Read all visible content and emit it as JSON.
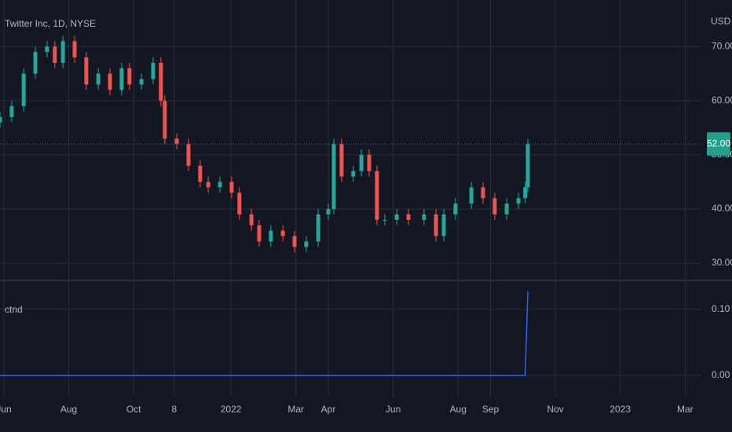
{
  "chart_data": [
    {
      "type": "candlestick",
      "title": "Twitter Inc, 1D, NYSE",
      "y_label": "USD",
      "up_color": "#26a69a",
      "down_color": "#ef5350",
      "grid": true,
      "x": [
        5.88,
        6.24,
        6.61,
        6.97,
        7.33,
        7.57,
        7.82,
        8.18,
        8.54,
        8.91,
        9.27,
        9.63,
        9.87,
        10.24,
        10.6,
        10.84,
        10.96,
        11.33,
        11.69,
        12.05,
        12.3,
        12.66,
        13.02,
        13.26,
        13.63,
        13.87,
        14.23,
        14.6,
        14.96,
        15.32,
        15.69,
        16.0,
        16.17,
        16.41,
        16.77,
        17.02,
        17.26,
        17.5,
        17.74,
        18.11,
        18.47,
        18.95,
        19.32,
        19.56,
        19.92,
        20.41,
        20.77,
        21.13,
        21.5,
        21.86,
        22.07,
        22.15
      ],
      "open": [
        56,
        57,
        59,
        65,
        69,
        70,
        67,
        71,
        68,
        63,
        65,
        62,
        66,
        63,
        64,
        67,
        60,
        53,
        52,
        48,
        45,
        44,
        45,
        43,
        39,
        37,
        34,
        36,
        35,
        33,
        34,
        39,
        40,
        52,
        46,
        47,
        50,
        47,
        38,
        38,
        39,
        38,
        39,
        35,
        39,
        41,
        44,
        42,
        39,
        41,
        42,
        44
      ],
      "high": [
        58,
        60,
        66,
        70,
        71,
        71,
        72,
        72,
        69,
        66,
        66,
        67,
        67,
        65,
        68,
        68,
        61,
        54,
        53,
        49,
        46,
        46,
        46,
        44,
        40,
        38,
        37,
        37,
        36,
        35,
        40,
        41,
        53,
        53,
        48,
        51,
        51,
        48,
        39,
        40,
        40,
        40,
        40,
        40,
        42,
        45,
        45,
        43,
        42,
        43,
        45,
        53
      ],
      "low": [
        55,
        56,
        58,
        64,
        68,
        66,
        66,
        67,
        62,
        62,
        61,
        61,
        62,
        62,
        63,
        59,
        52,
        51,
        47,
        44,
        43,
        43,
        42,
        38,
        36,
        33,
        33,
        34,
        32,
        32,
        33,
        38,
        39,
        45,
        45,
        46,
        46,
        37,
        37,
        37,
        37,
        37,
        34,
        34,
        38,
        40,
        41,
        38,
        38,
        40,
        41,
        43
      ],
      "close": [
        57,
        59,
        65,
        69,
        70,
        67,
        71,
        68,
        63,
        65,
        62,
        66,
        63,
        64,
        67,
        60,
        53,
        52,
        48,
        45,
        44,
        45,
        43,
        39,
        37,
        34,
        36,
        35,
        33,
        34,
        39,
        40,
        52,
        46,
        47,
        50,
        47,
        38,
        38,
        39,
        38,
        39,
        35,
        39,
        41,
        44,
        42,
        39,
        41,
        42,
        44,
        52
      ],
      "last_price": {
        "value": 52,
        "label": "52.00"
      },
      "last_price_color": "#22a08c",
      "price_line_color": "#2962ff",
      "xlim": [
        5.88,
        27.5
      ],
      "ylim": [
        27.1,
        78.6
      ],
      "yticks": [
        {
          "value": 30,
          "label": "30.00"
        },
        {
          "value": 40,
          "label": "40.00"
        },
        {
          "value": 50,
          "label": "50.00"
        },
        {
          "value": 60,
          "label": "60.00"
        },
        {
          "value": 70,
          "label": "70.00"
        }
      ]
    },
    {
      "type": "line",
      "title": "ctnd",
      "grid": true,
      "series": [
        {
          "name": "ctnd",
          "color": "#2962ff",
          "x": [
            5.88,
            22.07,
            22.15
          ],
          "values": [
            0,
            0,
            0.127
          ]
        }
      ],
      "xlim": [
        5.88,
        27.5
      ],
      "ylim": [
        -0.032,
        0.14
      ],
      "yticks": [
        {
          "value": 0,
          "label": "0.00"
        },
        {
          "value": 0.1,
          "label": "0.10"
        }
      ],
      "xticks": [
        {
          "value": 6,
          "label": "Jun"
        },
        {
          "value": 8,
          "label": "Aug"
        },
        {
          "value": 10,
          "label": "Oct"
        },
        {
          "value": 11.25,
          "label": "8"
        },
        {
          "value": 13,
          "label": "2022"
        },
        {
          "value": 15,
          "label": "Mar"
        },
        {
          "value": 16,
          "label": "Apr"
        },
        {
          "value": 18,
          "label": "Jun"
        },
        {
          "value": 20,
          "label": "Aug"
        },
        {
          "value": 21,
          "label": "Sep"
        },
        {
          "value": 23,
          "label": "Nov"
        },
        {
          "value": 25,
          "label": "2023"
        },
        {
          "value": 27,
          "label": "Mar"
        }
      ]
    }
  ]
}
